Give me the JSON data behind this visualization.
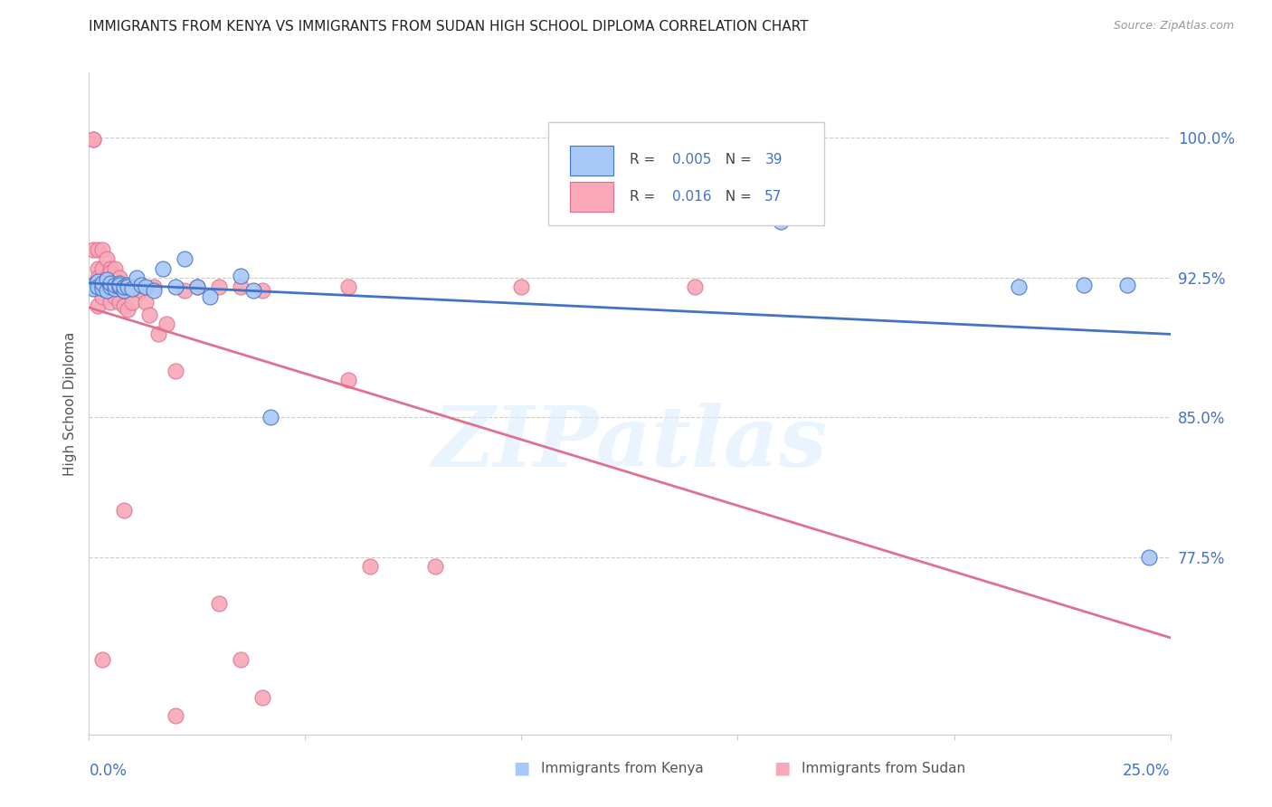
{
  "title": "IMMIGRANTS FROM KENYA VS IMMIGRANTS FROM SUDAN HIGH SCHOOL DIPLOMA CORRELATION CHART",
  "source": "Source: ZipAtlas.com",
  "ylabel": "High School Diploma",
  "ytick_values": [
    0.775,
    0.85,
    0.925,
    1.0
  ],
  "ytick_labels": [
    "77.5%",
    "85.0%",
    "92.5%",
    "100.0%"
  ],
  "xlim": [
    0.0,
    0.25
  ],
  "ylim": [
    0.68,
    1.035
  ],
  "xtick_positions": [
    0.0,
    0.05,
    0.1,
    0.15,
    0.2,
    0.25
  ],
  "watermark": "ZIPatlas",
  "legend_kenya_R": "0.005",
  "legend_kenya_N": "39",
  "legend_sudan_R": "0.016",
  "legend_sudan_N": "57",
  "color_kenya_fill": "#a8c8f8",
  "color_kenya_edge": "#4472c4",
  "color_sudan_fill": "#f8a8b8",
  "color_sudan_edge": "#e07090",
  "color_trendline_kenya": "#4472c4",
  "color_trendline_sudan": "#e07090",
  "color_axis_labels": "#4472c4",
  "color_grid": "#cccccc",
  "kenya_x": [
    0.001,
    0.001,
    0.002,
    0.002,
    0.003,
    0.003,
    0.003,
    0.004,
    0.004,
    0.005,
    0.005,
    0.006,
    0.006,
    0.007,
    0.007,
    0.007,
    0.008,
    0.008,
    0.009,
    0.009,
    0.01,
    0.011,
    0.012,
    0.013,
    0.015,
    0.017,
    0.02,
    0.022,
    0.025,
    0.028,
    0.035,
    0.038,
    0.042,
    0.13,
    0.16,
    0.215,
    0.23,
    0.24,
    0.245
  ],
  "kenya_y": [
    0.921,
    0.919,
    0.923,
    0.92,
    0.921,
    0.919,
    0.922,
    0.918,
    0.924,
    0.92,
    0.922,
    0.919,
    0.921,
    0.922,
    0.92,
    0.921,
    0.918,
    0.92,
    0.921,
    0.92,
    0.919,
    0.925,
    0.921,
    0.92,
    0.918,
    0.93,
    0.92,
    0.935,
    0.92,
    0.915,
    0.926,
    0.918,
    0.85,
    0.965,
    0.955,
    0.92,
    0.921,
    0.921,
    0.775
  ],
  "sudan_x": [
    0.001,
    0.001,
    0.001,
    0.001,
    0.002,
    0.002,
    0.002,
    0.002,
    0.003,
    0.003,
    0.003,
    0.003,
    0.004,
    0.004,
    0.004,
    0.005,
    0.005,
    0.005,
    0.005,
    0.006,
    0.006,
    0.006,
    0.007,
    0.007,
    0.007,
    0.008,
    0.008,
    0.008,
    0.009,
    0.009,
    0.01,
    0.01,
    0.011,
    0.012,
    0.013,
    0.014,
    0.015,
    0.016,
    0.018,
    0.02,
    0.022,
    0.025,
    0.03,
    0.035,
    0.04,
    0.06,
    0.065,
    0.08,
    0.1,
    0.14,
    0.003,
    0.008,
    0.02,
    0.03,
    0.035,
    0.04,
    0.06
  ],
  "sudan_y": [
    0.999,
    0.999,
    0.94,
    0.92,
    0.94,
    0.93,
    0.925,
    0.91,
    0.94,
    0.93,
    0.92,
    0.915,
    0.935,
    0.925,
    0.918,
    0.93,
    0.92,
    0.912,
    0.928,
    0.93,
    0.92,
    0.915,
    0.925,
    0.918,
    0.912,
    0.92,
    0.91,
    0.918,
    0.908,
    0.92,
    0.918,
    0.912,
    0.92,
    0.918,
    0.912,
    0.905,
    0.92,
    0.895,
    0.9,
    0.875,
    0.918,
    0.92,
    0.92,
    0.92,
    0.918,
    0.92,
    0.77,
    0.77,
    0.92,
    0.92,
    0.72,
    0.8,
    0.69,
    0.75,
    0.72,
    0.7,
    0.87
  ]
}
